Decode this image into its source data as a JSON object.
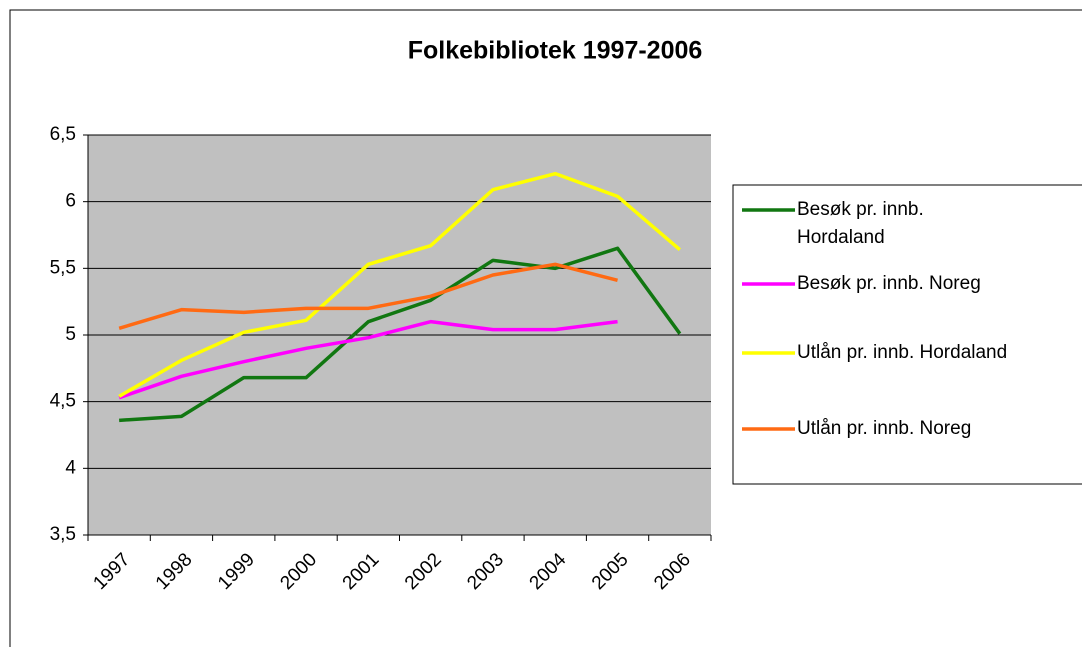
{
  "chart_data": {
    "type": "line",
    "title": "Folkebibliotek 1997-2006",
    "categories": [
      "1997",
      "1998",
      "1999",
      "2000",
      "2001",
      "2002",
      "2003",
      "2004",
      "2005",
      "2006"
    ],
    "series": [
      {
        "name": "Besøk pr. innb. Hordaland",
        "color": "#117711",
        "values": [
          4.36,
          4.39,
          4.68,
          4.68,
          5.1,
          5.26,
          5.56,
          5.5,
          5.65,
          5.01
        ]
      },
      {
        "name": "Besøk pr. innb. Noreg",
        "color": "#ff00ff",
        "values": [
          4.53,
          4.69,
          4.8,
          4.9,
          4.98,
          5.1,
          5.04,
          5.04,
          5.1,
          null
        ]
      },
      {
        "name": "Utlån pr. innb. Hordaland",
        "color": "#ffff00",
        "values": [
          4.54,
          4.81,
          5.02,
          5.11,
          5.53,
          5.67,
          6.09,
          6.21,
          6.04,
          5.64
        ]
      },
      {
        "name": "Utlån pr. innb. Noreg",
        "color": "#ff6a13",
        "values": [
          5.05,
          5.19,
          5.17,
          5.2,
          5.2,
          5.29,
          5.45,
          5.53,
          5.41,
          null
        ]
      }
    ],
    "ylim": [
      3.5,
      6.5
    ],
    "yticks": [
      {
        "value": 3.5,
        "label": "3,5"
      },
      4,
      {
        "value": 4.5,
        "label": "4,5"
      },
      5,
      {
        "value": 5.5,
        "label": "5,5"
      },
      6,
      {
        "value": 6.5,
        "label": "6,5"
      }
    ],
    "grid": true,
    "legend": "right"
  }
}
